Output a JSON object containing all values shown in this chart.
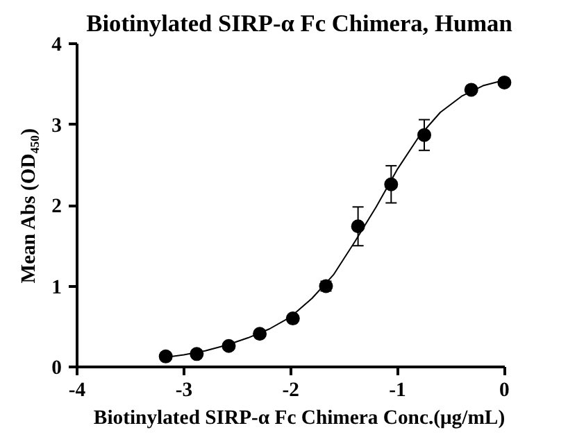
{
  "chart_data": {
    "type": "scatter",
    "title": "Biotinylated SIRP-α Fc Chimera, Human",
    "xlabel": "Biotinylated SIRP-α Fc Chimera Conc.(μg/mL)",
    "ylabel": "Mean Abs (OD₄₅₀)",
    "xlim": [
      -4,
      0
    ],
    "xticks": [
      -4,
      -3,
      -2,
      -1,
      0
    ],
    "ylim": [
      0,
      4
    ],
    "yticks": [
      0,
      1,
      2,
      3,
      4
    ],
    "grid": false,
    "series": [
      {
        "marker": "circle",
        "color": "#000000",
        "x": [
          -3.17,
          -2.88,
          -2.58,
          -2.29,
          -1.98,
          -1.67,
          -1.37,
          -1.06,
          -0.75,
          -0.31,
          0
        ],
        "values": [
          0.13,
          0.16,
          0.26,
          0.41,
          0.6,
          1.0,
          1.74,
          2.26,
          2.87,
          3.43,
          3.52
        ],
        "errors": [
          null,
          null,
          null,
          null,
          null,
          0.06,
          0.24,
          0.23,
          0.19,
          null,
          null
        ]
      },
      {
        "type": "line",
        "line_style": "solid",
        "color": "#000000",
        "x": [
          -3.17,
          -3.0,
          -2.8,
          -2.6,
          -2.4,
          -2.2,
          -2.0,
          -1.8,
          -1.6,
          -1.4,
          -1.2,
          -1.0,
          -0.8,
          -0.6,
          -0.4,
          -0.2,
          0
        ],
        "values": [
          0.12,
          0.15,
          0.2,
          0.27,
          0.36,
          0.47,
          0.62,
          0.85,
          1.14,
          1.55,
          1.98,
          2.45,
          2.85,
          3.15,
          3.35,
          3.48,
          3.55
        ]
      }
    ]
  }
}
